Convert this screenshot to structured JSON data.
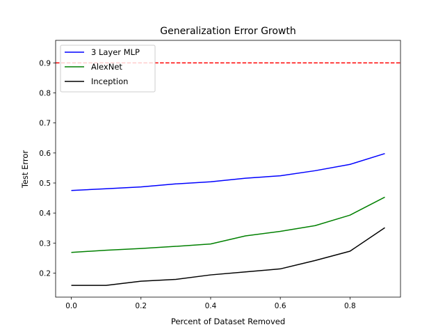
{
  "chart_data": {
    "type": "line",
    "title": "Generalization Error Growth",
    "xlabel": "Percent of Dataset Removed",
    "ylabel": "Test Error",
    "xlim": [
      -0.045,
      0.945
    ],
    "ylim": [
      0.12,
      0.975
    ],
    "xticks": [
      0.0,
      0.2,
      0.4,
      0.6,
      0.8
    ],
    "xtick_labels": [
      "0.0",
      "0.2",
      "0.4",
      "0.6",
      "0.8"
    ],
    "yticks": [
      0.2,
      0.3,
      0.4,
      0.5,
      0.6,
      0.7,
      0.8,
      0.9
    ],
    "ytick_labels": [
      "0.2",
      "0.3",
      "0.4",
      "0.5",
      "0.6",
      "0.7",
      "0.8",
      "0.9"
    ],
    "grid": false,
    "legend_position": "top-left",
    "x": [
      0.0,
      0.1,
      0.2,
      0.3,
      0.4,
      0.5,
      0.6,
      0.7,
      0.8,
      0.9
    ],
    "series": [
      {
        "name": "3 Layer MLP",
        "color": "#0000ff",
        "values": [
          0.475,
          0.481,
          0.487,
          0.497,
          0.504,
          0.516,
          0.524,
          0.541,
          0.562,
          0.598
        ]
      },
      {
        "name": "AlexNet",
        "color": "#008000",
        "values": [
          0.269,
          0.276,
          0.282,
          0.289,
          0.297,
          0.324,
          0.339,
          0.358,
          0.393,
          0.453
        ]
      },
      {
        "name": "Inception",
        "color": "#000000",
        "values": [
          0.159,
          0.159,
          0.173,
          0.179,
          0.194,
          0.204,
          0.214,
          0.242,
          0.273,
          0.351
        ]
      }
    ],
    "reference_line": {
      "y": 0.9,
      "color": "#ff0000",
      "style": "dashed"
    }
  }
}
